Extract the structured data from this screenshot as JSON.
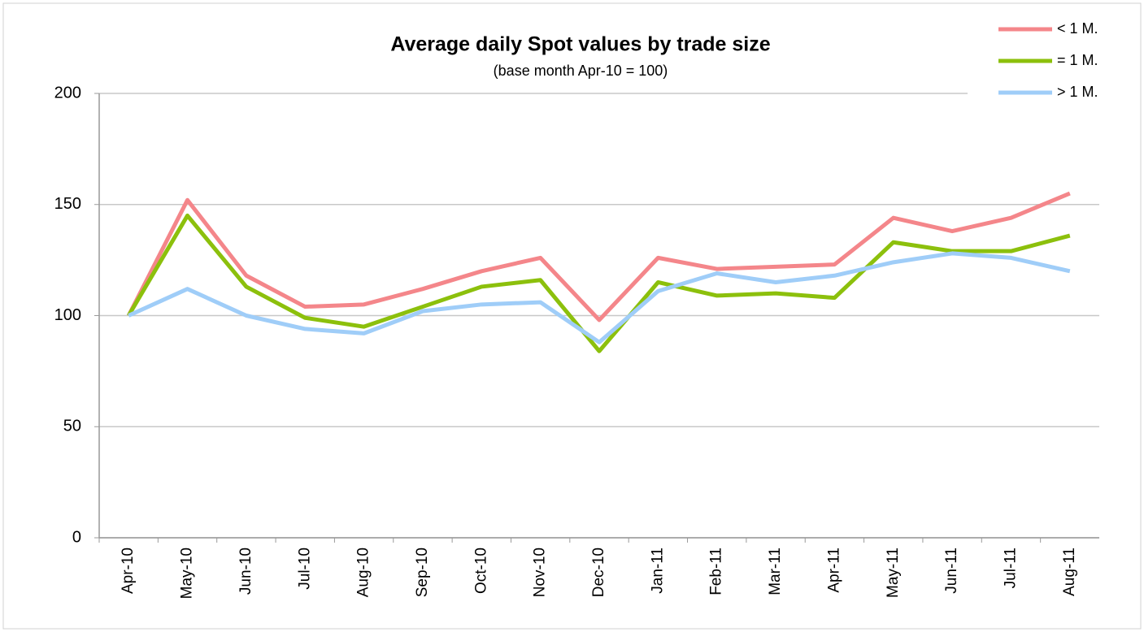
{
  "chart_data": {
    "type": "line",
    "title": "Average daily Spot values by trade size",
    "subtitle": "(base month Apr-10 = 100)",
    "categories": [
      "Apr-10",
      "May-10",
      "Jun-10",
      "Jul-10",
      "Aug-10",
      "Sep-10",
      "Oct-10",
      "Nov-10",
      "Dec-10",
      "Jan-11",
      "Feb-11",
      "Mar-11",
      "Apr-11",
      "May-11",
      "Jun-11",
      "Jul-11",
      "Aug-11"
    ],
    "series": [
      {
        "name": "< 1 M.",
        "color": "#f4868a",
        "values": [
          100,
          152,
          118,
          104,
          105,
          112,
          120,
          126,
          98,
          126,
          121,
          122,
          123,
          144,
          138,
          144,
          155
        ]
      },
      {
        "name": "= 1 M.",
        "color": "#8cc00c",
        "values": [
          100,
          145,
          113,
          99,
          95,
          104,
          113,
          116,
          84,
          115,
          109,
          110,
          108,
          133,
          129,
          129,
          136
        ]
      },
      {
        "name": "> 1 M.",
        "color": "#9fcdf8",
        "values": [
          100,
          112,
          100,
          94,
          92,
          102,
          105,
          106,
          88,
          111,
          119,
          115,
          118,
          124,
          128,
          126,
          120
        ]
      }
    ],
    "ylim": [
      0,
      200
    ],
    "yticks": [
      0,
      50,
      100,
      150,
      200
    ],
    "grid": true,
    "legend": "top-right"
  }
}
